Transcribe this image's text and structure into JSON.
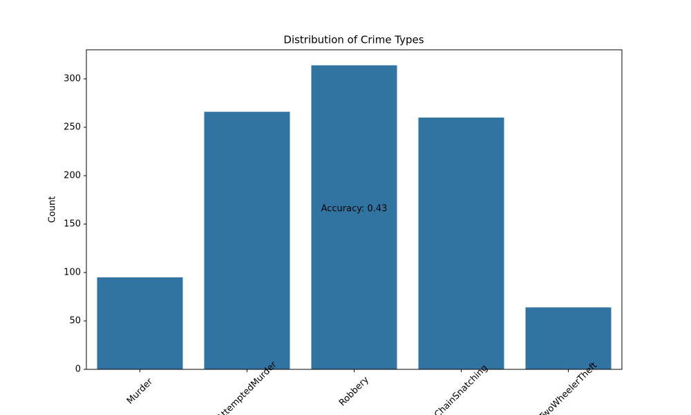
{
  "chart_data": {
    "type": "bar",
    "title": "Distribution of Crime Types",
    "ylabel": "Count",
    "categories": [
      "Murder",
      "AttemptedMurder",
      "Robbery",
      "ChainSnatching",
      "TwoWheelerTheft"
    ],
    "values": [
      95,
      266,
      314,
      260,
      64
    ],
    "color": "#3274a1",
    "ylim": [
      0,
      330
    ],
    "yticks": [
      0,
      50,
      100,
      150,
      200,
      250,
      300
    ],
    "annotation": "Accuracy: 0.43"
  }
}
